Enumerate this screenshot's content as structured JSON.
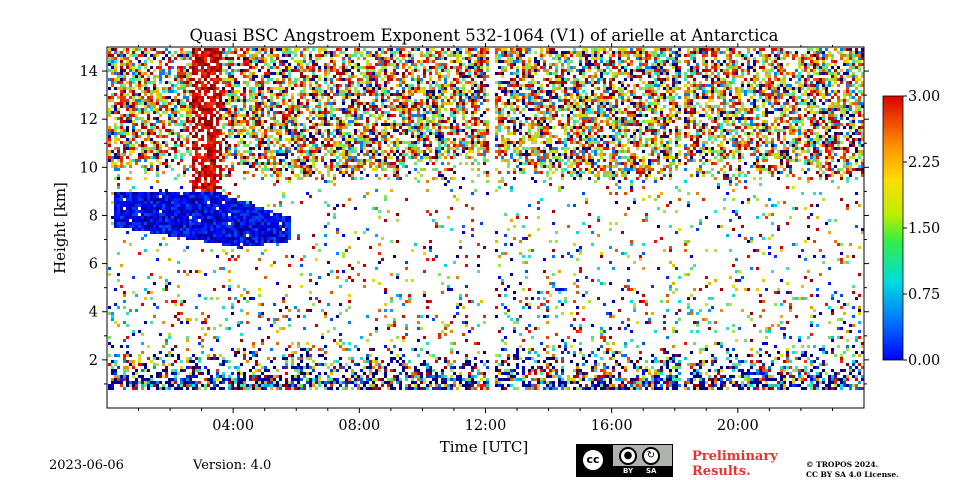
{
  "chart_data": {
    "type": "heatmap",
    "title": "Quasi BSC Angstroem Exponent 532-1064 (V1) of arielle at Antarctica",
    "xlabel": "Time [UTC]",
    "ylabel": "Height [km]",
    "xlim": [
      0,
      24
    ],
    "ylim": [
      0,
      15
    ],
    "x_ticks": [
      "04:00",
      "08:00",
      "12:00",
      "16:00",
      "20:00"
    ],
    "x_tick_values": [
      4,
      8,
      12,
      16,
      20
    ],
    "y_ticks": [
      "2",
      "4",
      "6",
      "8",
      "10",
      "12",
      "14"
    ],
    "y_tick_values": [
      2,
      4,
      6,
      8,
      10,
      12,
      14
    ],
    "colorbar": {
      "min": 0.0,
      "max": 3.0,
      "ticks": [
        "0.00",
        "0.75",
        "1.50",
        "2.25",
        "3.00"
      ],
      "tick_values": [
        0.0,
        0.75,
        1.5,
        2.25,
        3.0
      ],
      "colormap": "jet"
    },
    "data_gaps_utc": [
      12.15,
      18.2
    ],
    "features": [
      {
        "kind": "elevated layer",
        "time_range": [
          0.2,
          5.8
        ],
        "height_range": [
          6.8,
          9.0
        ],
        "value": 0.4
      },
      {
        "kind": "plume",
        "time_range": [
          2.6,
          3.6
        ],
        "height_range": [
          9.0,
          15.0
        ],
        "value": 2.7
      },
      {
        "kind": "noisy upper region",
        "height_range": [
          9.5,
          15.0
        ],
        "value_range": [
          1.0,
          3.0
        ]
      },
      {
        "kind": "near-ground signal",
        "height_range": [
          0.8,
          2.5
        ],
        "value_range": [
          0.0,
          3.0
        ]
      }
    ]
  },
  "footer": {
    "date": "2023-06-06",
    "version": "Version: 4.0",
    "prelim_line1": "Preliminary",
    "prelim_line2": "Results.",
    "license_line1": "© TROPOS 2024.",
    "license_line2": "CC BY SA 4.0 License.",
    "cc_badge": {
      "cc": "cc",
      "by": "BY",
      "sa": "SA"
    }
  },
  "colors": {
    "prelim": "#e8322d",
    "badge_bg": "#aeb3ad"
  }
}
